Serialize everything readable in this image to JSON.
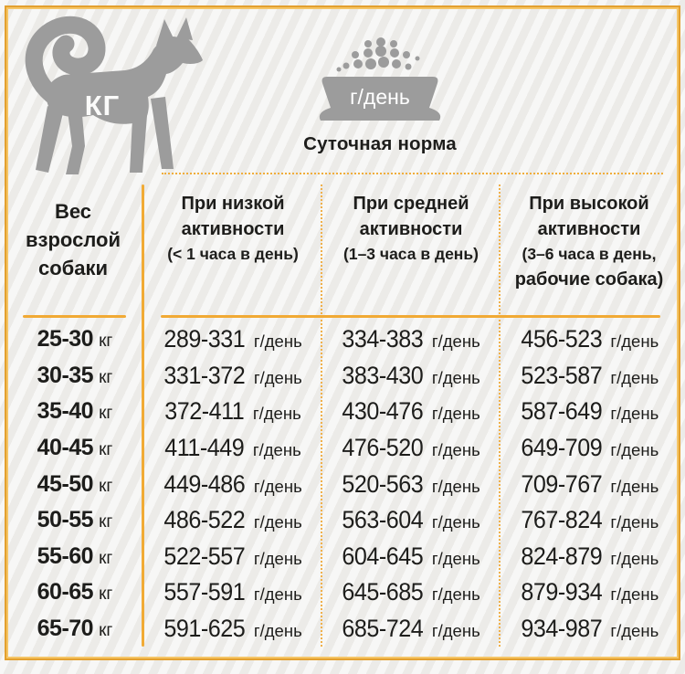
{
  "header": {
    "kg_label": "КГ",
    "bowl_label": "г/день",
    "title": "Суточная норма"
  },
  "table": {
    "weight_header_lines": [
      "Вес",
      "взрослой",
      "собаки"
    ],
    "activity_headers": [
      {
        "lines": [
          "При низкой",
          "активности",
          "(< 1 часа в день)"
        ]
      },
      {
        "lines": [
          "При средней",
          "активности",
          "(1–3 часа в день)"
        ]
      },
      {
        "lines": [
          "При высокой",
          "активности",
          "(3–6 часа в день,",
          "рабочие собака)"
        ]
      }
    ],
    "weight_unit": "кг",
    "value_unit": "г/день",
    "rows": [
      {
        "weight": "25-30",
        "low": "289-331",
        "medium": "334-383",
        "high": "456-523"
      },
      {
        "weight": "30-35",
        "low": "331-372",
        "medium": "383-430",
        "high": "523-587"
      },
      {
        "weight": "35-40",
        "low": "372-411",
        "medium": "430-476",
        "high": "587-649"
      },
      {
        "weight": "40-45",
        "low": "411-449",
        "medium": "476-520",
        "high": "649-709"
      },
      {
        "weight": "45-50",
        "low": "449-486",
        "medium": "520-563",
        "high": "709-767"
      },
      {
        "weight": "50-55",
        "low": "486-522",
        "medium": "563-604",
        "high": "767-824"
      },
      {
        "weight": "55-60",
        "low": "522-557",
        "medium": "604-645",
        "high": "824-879"
      },
      {
        "weight": "60-65",
        "low": "557-591",
        "medium": "645-685",
        "high": "879-934"
      },
      {
        "weight": "65-70",
        "low": "591-625",
        "medium": "685-724",
        "high": "934-987"
      }
    ]
  },
  "chart_data": {
    "type": "table",
    "title": "Суточная норма",
    "unit": "г/день",
    "columns": [
      "Вес взрослой собаки",
      "При низкой активности (< 1 часа в день)",
      "При средней активности (1–3 часа в день)",
      "При высокой активности (3–6 часа в день, рабочие собака)"
    ],
    "rows": [
      [
        "25-30 кг",
        "289-331",
        "334-383",
        "456-523"
      ],
      [
        "30-35 кг",
        "331-372",
        "383-430",
        "523-587"
      ],
      [
        "35-40 кг",
        "372-411",
        "430-476",
        "587-649"
      ],
      [
        "40-45 кг",
        "411-449",
        "476-520",
        "649-709"
      ],
      [
        "45-50 кг",
        "449-486",
        "520-563",
        "709-767"
      ],
      [
        "50-55 кг",
        "486-522",
        "563-604",
        "767-824"
      ],
      [
        "55-60 кг",
        "522-557",
        "604-645",
        "824-879"
      ],
      [
        "60-65 кг",
        "557-591",
        "645-685",
        "879-934"
      ],
      [
        "65-70 кг",
        "591-625",
        "685-724",
        "934-987"
      ]
    ]
  },
  "colors": {
    "accent_orange": "#f1ab36",
    "silhouette_gray": "#9c9c9c",
    "text": "#1d1d1b",
    "background": "#f1f0ee"
  }
}
